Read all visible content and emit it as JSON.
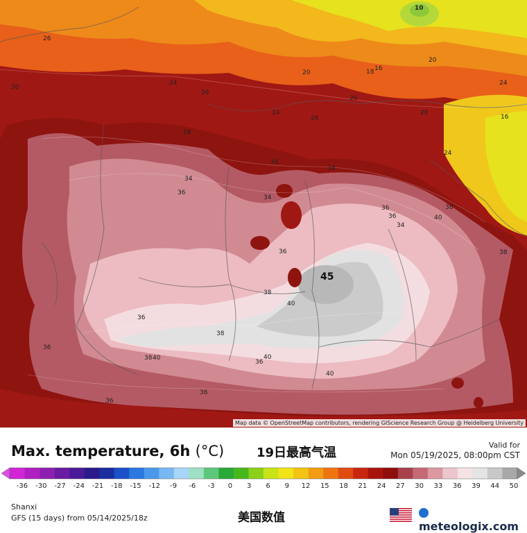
{
  "map": {
    "attribution": "Map data © OpenStreetMap contributors, rendering GIScience Research Group @ Heidelberg University",
    "peak_label": "45",
    "contour_labels": [
      "10",
      "26",
      "30",
      "24",
      "26",
      "20",
      "18",
      "16",
      "20",
      "24",
      "24",
      "26",
      "26",
      "28",
      "16",
      "28",
      "24",
      "34",
      "36",
      "34",
      "36",
      "36",
      "36",
      "34",
      "38",
      "40",
      "38",
      "40",
      "38",
      "40",
      "36",
      "40",
      "36",
      "36",
      "38",
      "38",
      "36",
      "36",
      "34",
      "34",
      "40"
    ]
  },
  "footer": {
    "title": "Max. temperature, 6h",
    "title_unit": "(°C)",
    "title_cn": "19日最高气温",
    "valid_label": "Valid for",
    "valid_time": "Mon 05/19/2025, 08:00pm CST",
    "region": "Shanxi",
    "model": "GFS (15 days) from 05/14/2025/18z",
    "subtitle_cn": "美国数值",
    "brand": "meteologix.com",
    "flag_icon": "us-flag-icon",
    "brand_icon": "meteologix-logo-icon"
  },
  "colorbar": {
    "tick_labels": [
      "-36",
      "-30",
      "-27",
      "-24",
      "-21",
      "-18",
      "-15",
      "-12",
      "-9",
      "-6",
      "-3",
      "0",
      "3",
      "6",
      "9",
      "12",
      "15",
      "18",
      "21",
      "24",
      "27",
      "30",
      "33",
      "36",
      "39",
      "44",
      "50"
    ],
    "colors": [
      "#d126d6",
      "#b01fc0",
      "#8f1fb0",
      "#6a1aa3",
      "#4a1a98",
      "#2a1a8a",
      "#1a2ea0",
      "#1a50c8",
      "#2a78e0",
      "#4a98ec",
      "#78b8f2",
      "#a8d6f8",
      "#9ee0c4",
      "#5cc87c",
      "#2aa838",
      "#46b81c",
      "#8cd01a",
      "#c8e418",
      "#f0e416",
      "#f4c414",
      "#f29c12",
      "#ee7410",
      "#e04c10",
      "#c8260e",
      "#a8140c",
      "#8e0e0c",
      "#a8404a",
      "#c46a74",
      "#dc98a0",
      "#ecc6cc",
      "#f4e2e4",
      "#e4e4e4",
      "#c8c8c8",
      "#a8a8a8"
    ]
  }
}
